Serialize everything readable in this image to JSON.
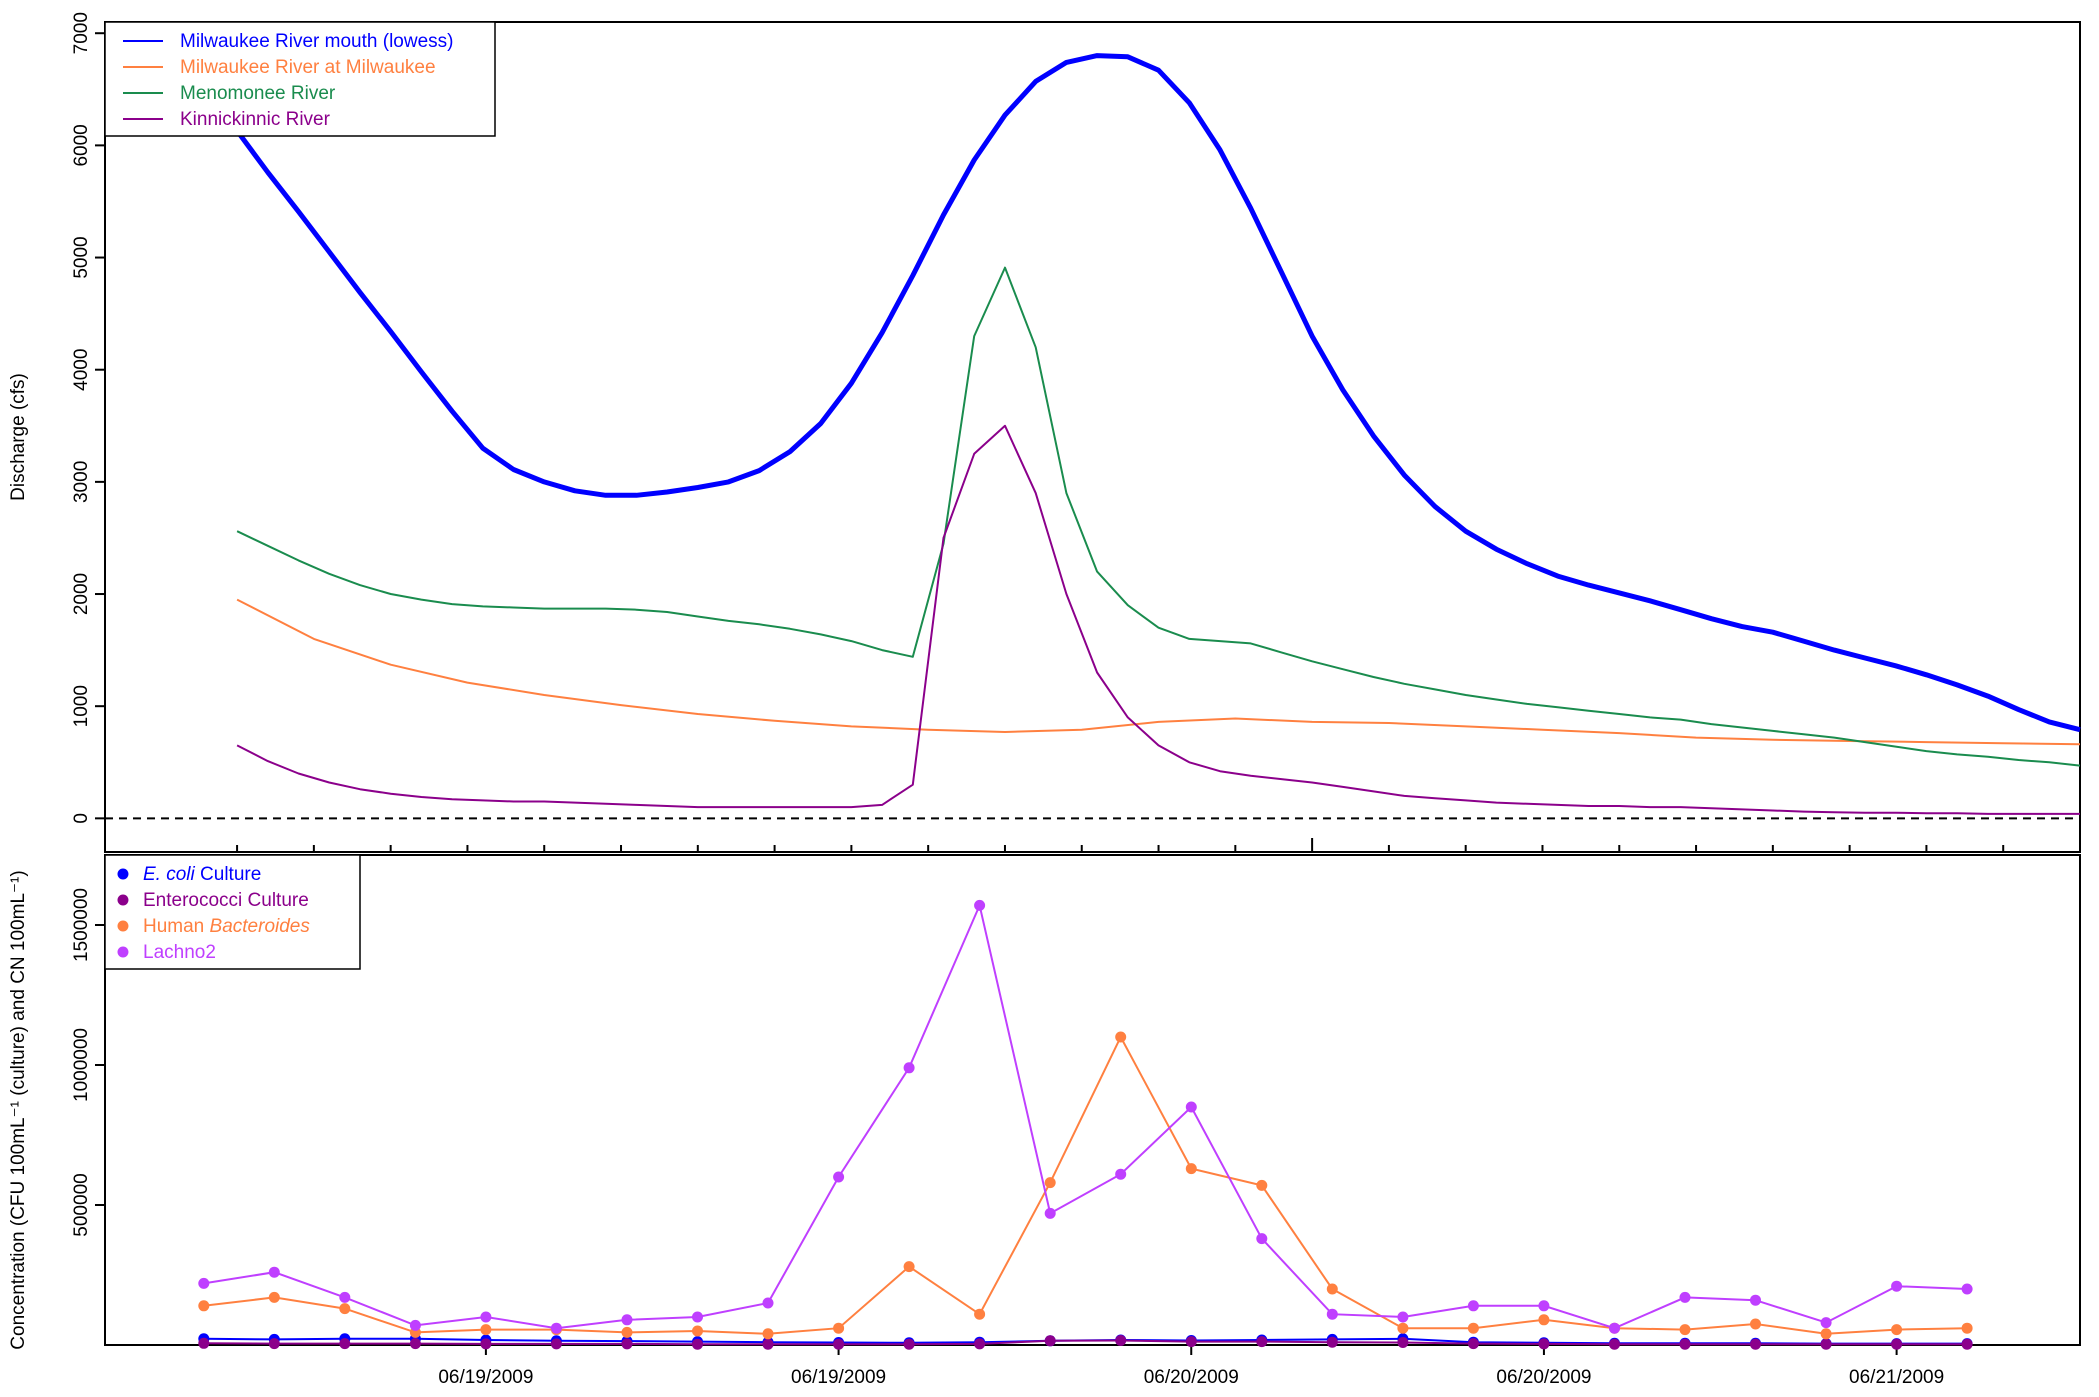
{
  "chart_data": [
    {
      "type": "line",
      "title": "",
      "ylabel": "Discharge (cfs)",
      "xlabel": "",
      "ylim": [
        -300,
        7100
      ],
      "xlim": [
        -0.286,
        1.0
      ],
      "yticks": [
        0,
        1000,
        2000,
        3000,
        4000,
        5000,
        6000,
        7000
      ],
      "baseline": 0,
      "legend_position": "top-left",
      "grid": false,
      "series": [
        {
          "name": "Milwaukee River mouth (lowess)",
          "color": "#0000ff",
          "x": [
            -0.2,
            -0.18,
            -0.16,
            -0.14,
            -0.12,
            -0.1,
            -0.08,
            -0.06,
            -0.04,
            -0.02,
            0.0,
            0.02,
            0.04,
            0.06,
            0.08,
            0.1,
            0.12,
            0.14,
            0.16,
            0.18,
            0.2,
            0.22,
            0.24,
            0.26,
            0.28,
            0.3,
            0.32,
            0.34,
            0.36,
            0.38,
            0.4,
            0.42,
            0.44,
            0.46,
            0.48,
            0.5,
            0.52,
            0.54,
            0.56,
            0.58,
            0.6,
            0.62,
            0.64,
            0.66,
            0.68,
            0.7,
            0.72,
            0.74,
            0.76,
            0.78,
            0.8,
            0.82,
            0.84,
            0.86,
            0.88,
            0.9,
            0.92,
            0.94,
            0.96,
            0.98,
            1.0
          ],
          "y": [
            6130,
            5760,
            5410,
            5050,
            4690,
            4340,
            3980,
            3630,
            3300,
            3110,
            3000,
            2920,
            2880,
            2880,
            2910,
            2950,
            3000,
            3100,
            3270,
            3520,
            3880,
            4330,
            4840,
            5380,
            5870,
            6270,
            6570,
            6740,
            6800,
            6790,
            6670,
            6380,
            5960,
            5440,
            4870,
            4300,
            3820,
            3410,
            3060,
            2780,
            2560,
            2400,
            2270,
            2160,
            2080,
            2010,
            1940,
            1860,
            1780,
            1710,
            1660,
            1580,
            1500,
            1430,
            1360,
            1280,
            1190,
            1090,
            970,
            860,
            790
          ]
        },
        {
          "name": "Milwaukee River at Milwaukee",
          "color": "#ff8040",
          "x": [
            -0.2,
            -0.15,
            -0.1,
            -0.05,
            0.0,
            0.05,
            0.1,
            0.15,
            0.2,
            0.25,
            0.3,
            0.35,
            0.4,
            0.45,
            0.5,
            0.55,
            0.6,
            0.65,
            0.7,
            0.75,
            0.8,
            0.85,
            0.9,
            0.95,
            1.0
          ],
          "y": [
            1950,
            1600,
            1370,
            1210,
            1100,
            1010,
            930,
            870,
            820,
            790,
            770,
            790,
            860,
            890,
            860,
            850,
            820,
            790,
            760,
            720,
            700,
            690,
            680,
            670,
            660
          ]
        },
        {
          "name": "Menomonee River",
          "color": "#1a8c4e",
          "x": [
            -0.2,
            -0.18,
            -0.16,
            -0.14,
            -0.12,
            -0.1,
            -0.08,
            -0.06,
            -0.04,
            -0.02,
            0.0,
            0.02,
            0.04,
            0.06,
            0.08,
            0.1,
            0.12,
            0.14,
            0.16,
            0.18,
            0.2,
            0.22,
            0.24,
            0.26,
            0.28,
            0.3,
            0.32,
            0.34,
            0.36,
            0.38,
            0.4,
            0.42,
            0.44,
            0.46,
            0.48,
            0.5,
            0.52,
            0.54,
            0.56,
            0.58,
            0.6,
            0.62,
            0.64,
            0.66,
            0.68,
            0.7,
            0.72,
            0.74,
            0.76,
            0.78,
            0.8,
            0.82,
            0.84,
            0.86,
            0.88,
            0.9,
            0.92,
            0.94,
            0.96,
            0.98,
            1.0
          ],
          "y": [
            2560,
            2430,
            2300,
            2180,
            2080,
            2000,
            1950,
            1910,
            1890,
            1880,
            1870,
            1870,
            1870,
            1860,
            1840,
            1800,
            1760,
            1730,
            1690,
            1640,
            1580,
            1500,
            1440,
            2450,
            4300,
            4910,
            4200,
            2900,
            2200,
            1900,
            1700,
            1600,
            1580,
            1560,
            1480,
            1400,
            1330,
            1260,
            1200,
            1150,
            1100,
            1060,
            1020,
            990,
            960,
            930,
            900,
            880,
            840,
            810,
            780,
            750,
            720,
            680,
            640,
            600,
            570,
            550,
            520,
            500,
            470
          ]
        },
        {
          "name": "Kinnickinnic River",
          "color": "#8b008b",
          "x": [
            -0.2,
            -0.18,
            -0.16,
            -0.14,
            -0.12,
            -0.1,
            -0.08,
            -0.06,
            -0.04,
            -0.02,
            0.0,
            0.02,
            0.04,
            0.06,
            0.08,
            0.1,
            0.12,
            0.14,
            0.16,
            0.18,
            0.2,
            0.22,
            0.24,
            0.26,
            0.28,
            0.3,
            0.32,
            0.34,
            0.36,
            0.38,
            0.4,
            0.42,
            0.44,
            0.46,
            0.48,
            0.5,
            0.52,
            0.54,
            0.56,
            0.58,
            0.6,
            0.62,
            0.64,
            0.66,
            0.68,
            0.7,
            0.72,
            0.74,
            0.76,
            0.78,
            0.8,
            0.82,
            0.84,
            0.86,
            0.88,
            0.9,
            0.92,
            0.94,
            0.96,
            0.98,
            1.0
          ],
          "y": [
            650,
            510,
            400,
            320,
            260,
            220,
            190,
            170,
            160,
            150,
            150,
            140,
            130,
            120,
            110,
            100,
            100,
            100,
            100,
            100,
            100,
            120,
            300,
            2500,
            3250,
            3500,
            2900,
            2000,
            1300,
            900,
            650,
            500,
            420,
            380,
            350,
            320,
            280,
            240,
            200,
            180,
            160,
            140,
            130,
            120,
            110,
            110,
            100,
            100,
            90,
            80,
            70,
            60,
            55,
            50,
            50,
            45,
            45,
            40,
            40,
            40,
            40
          ]
        }
      ]
    },
    {
      "type": "scatter",
      "title": "",
      "xlabel": "",
      "ylabel": "Concentration (CFU 100mL⁻¹ (culture) and CN 100mL⁻¹)",
      "ylim": [
        0,
        1750000
      ],
      "xlim": [
        -0.27,
        1.13
      ],
      "yticks": [
        500000,
        1000000,
        1500000
      ],
      "xticks": [
        0.0,
        0.25,
        0.5,
        0.75,
        1.0
      ],
      "xtick_labels": [
        "06/19/2009",
        "06/19/2009",
        "06/20/2009",
        "06/20/2009",
        "06/21/2009"
      ],
      "legend_position": "top-left",
      "grid": false,
      "series": [
        {
          "name": "E. coli",
          "name_suffix": " Culture",
          "italic": true,
          "color": "#0000ff",
          "x": [
            -0.2,
            -0.15,
            -0.1,
            -0.05,
            0.0,
            0.05,
            0.1,
            0.15,
            0.2,
            0.25,
            0.3,
            0.35,
            0.4,
            0.45,
            0.5,
            0.55,
            0.6,
            0.65,
            0.7,
            0.75,
            0.8,
            0.85,
            0.9,
            0.95,
            1.0,
            1.05
          ],
          "y": [
            22000,
            20000,
            22000,
            22000,
            18000,
            15000,
            14000,
            12000,
            10000,
            9000,
            8000,
            10000,
            15000,
            18000,
            16000,
            18000,
            20000,
            22000,
            10000,
            8000,
            6000,
            6000,
            6000,
            5000,
            5000,
            5000
          ]
        },
        {
          "name": "Enterococci Culture",
          "italic": false,
          "color": "#8b008b",
          "x": [
            -0.2,
            -0.15,
            -0.1,
            -0.05,
            0.0,
            0.05,
            0.1,
            0.15,
            0.2,
            0.25,
            0.3,
            0.35,
            0.4,
            0.45,
            0.5,
            0.55,
            0.6,
            0.65,
            0.7,
            0.75,
            0.8,
            0.85,
            0.9,
            0.95,
            1.0,
            1.05
          ],
          "y": [
            6000,
            5000,
            5000,
            5000,
            4000,
            4000,
            4000,
            3000,
            3000,
            3000,
            3000,
            4000,
            15000,
            16000,
            12000,
            12000,
            10000,
            9000,
            5000,
            4000,
            3000,
            3000,
            3000,
            3000,
            3000,
            3000
          ]
        },
        {
          "name": "Human",
          "name_suffix": "Bacteroides",
          "italic": false,
          "color": "#ff8040",
          "x": [
            -0.2,
            -0.15,
            -0.1,
            -0.05,
            0.0,
            0.05,
            0.1,
            0.15,
            0.2,
            0.25,
            0.3,
            0.35,
            0.4,
            0.45,
            0.5,
            0.55,
            0.6,
            0.65,
            0.7,
            0.75,
            0.8,
            0.85,
            0.9,
            0.95,
            1.0,
            1.05
          ],
          "y": [
            140000,
            170000,
            130000,
            45000,
            55000,
            55000,
            45000,
            50000,
            40000,
            60000,
            280000,
            110000,
            580000,
            1100000,
            630000,
            570000,
            200000,
            60000,
            60000,
            90000,
            60000,
            55000,
            75000,
            40000,
            55000,
            60000
          ]
        },
        {
          "name": "Lachno2",
          "italic": false,
          "color": "#bf3fff",
          "x": [
            -0.2,
            -0.15,
            -0.1,
            -0.05,
            0.0,
            0.05,
            0.1,
            0.15,
            0.2,
            0.25,
            0.3,
            0.35,
            0.4,
            0.45,
            0.5,
            0.55,
            0.6,
            0.65,
            0.7,
            0.75,
            0.8,
            0.85,
            0.9,
            0.95,
            1.0,
            1.05
          ],
          "y": [
            220000,
            260000,
            170000,
            70000,
            100000,
            60000,
            90000,
            100000,
            150000,
            600000,
            990000,
            1570000,
            470000,
            610000,
            850000,
            380000,
            110000,
            100000,
            140000,
            140000,
            60000,
            170000,
            160000,
            80000,
            210000,
            200000
          ]
        }
      ]
    }
  ]
}
